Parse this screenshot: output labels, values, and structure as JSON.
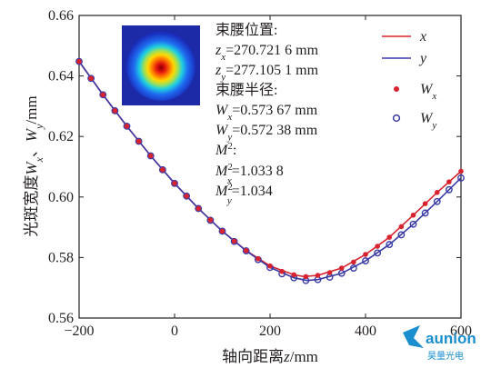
{
  "chart_data": {
    "type": "scatter",
    "xlabel": "轴向距离z/mm",
    "ylabel": "光斑宽度W_x、W_y/mm",
    "xlim": [
      -200,
      600
    ],
    "ylim": [
      0.56,
      0.66
    ],
    "xticks": [
      "−200",
      "0",
      "200",
      "400",
      "600"
    ],
    "yticks": [
      "0.56",
      "0.58",
      "0.60",
      "0.62",
      "0.64",
      "0.66"
    ],
    "grid": false,
    "legend_position": "top-right",
    "legend": [
      {
        "label": "x",
        "style": "line",
        "color": "#d7232f"
      },
      {
        "label": "y",
        "style": "line",
        "color": "#3a3aa6"
      },
      {
        "label": "W_x",
        "style": "filled-dot",
        "color": "#d7232f"
      },
      {
        "label": "W_y",
        "style": "open-circle",
        "color": "#3a3aa6"
      }
    ],
    "series": [
      {
        "name": "x",
        "kind": "line",
        "color": "#d7232f",
        "x": [
          -200,
          -150,
          -100,
          -50,
          0,
          50,
          100,
          150,
          200,
          250,
          270.7,
          300,
          350,
          400,
          450,
          500,
          550,
          600
        ],
        "y": [
          0.6448,
          0.6338,
          0.6234,
          0.6136,
          0.6045,
          0.5962,
          0.5887,
          0.5823,
          0.5772,
          0.5743,
          0.5737,
          0.5741,
          0.5765,
          0.581,
          0.5867,
          0.594,
          0.6015,
          0.6085
        ]
      },
      {
        "name": "y",
        "kind": "line",
        "color": "#3a3aa6",
        "x": [
          -200,
          -150,
          -100,
          -50,
          0,
          50,
          100,
          150,
          200,
          250,
          277.1,
          300,
          350,
          400,
          450,
          500,
          550,
          600
        ],
        "y": [
          0.6448,
          0.6338,
          0.6234,
          0.6136,
          0.6045,
          0.5962,
          0.5887,
          0.5822,
          0.5767,
          0.5733,
          0.5724,
          0.5727,
          0.5748,
          0.5789,
          0.5843,
          0.591,
          0.5985,
          0.6063
        ]
      },
      {
        "name": "W_x",
        "kind": "points",
        "color": "#d7232f",
        "x": [
          -200,
          -175,
          -150,
          -125,
          -100,
          -75,
          -50,
          -25,
          0,
          25,
          50,
          75,
          100,
          125,
          150,
          175,
          200,
          225,
          250,
          275,
          300,
          325,
          350,
          375,
          400,
          425,
          450,
          475,
          500,
          525,
          550,
          575,
          600
        ],
        "y": [
          0.6448,
          0.6392,
          0.6338,
          0.6285,
          0.6234,
          0.6184,
          0.6136,
          0.609,
          0.6045,
          0.6003,
          0.5962,
          0.5924,
          0.5887,
          0.5854,
          0.5823,
          0.5796,
          0.5772,
          0.5754,
          0.5743,
          0.5737,
          0.5741,
          0.575,
          0.5765,
          0.5785,
          0.581,
          0.5837,
          0.5867,
          0.5902,
          0.594,
          0.5978,
          0.6015,
          0.605,
          0.6085
        ]
      },
      {
        "name": "W_y",
        "kind": "points",
        "color": "#3a3aa6",
        "x": [
          -200,
          -175,
          -150,
          -125,
          -100,
          -75,
          -50,
          -25,
          0,
          25,
          50,
          75,
          100,
          125,
          150,
          175,
          200,
          225,
          250,
          275,
          300,
          325,
          350,
          375,
          400,
          425,
          450,
          475,
          500,
          525,
          550,
          575,
          600
        ],
        "y": [
          0.6448,
          0.6392,
          0.6338,
          0.6285,
          0.6234,
          0.6184,
          0.6136,
          0.609,
          0.6045,
          0.6003,
          0.5962,
          0.5923,
          0.5887,
          0.5853,
          0.5822,
          0.5793,
          0.5767,
          0.5746,
          0.5733,
          0.5724,
          0.5727,
          0.5735,
          0.5748,
          0.5765,
          0.5789,
          0.5815,
          0.5843,
          0.5875,
          0.591,
          0.5947,
          0.5985,
          0.6024,
          0.6063
        ]
      }
    ],
    "annotations": [
      {
        "id": "waist_pos_title",
        "text": "束腰位置:"
      },
      {
        "id": "zx",
        "sym": "z",
        "sub": "x",
        "text": "=270.721 6 mm"
      },
      {
        "id": "zy",
        "sym": "z",
        "sub": "y",
        "text": "=277.105 1 mm"
      },
      {
        "id": "waist_radius_title",
        "text": "束腰半径:"
      },
      {
        "id": "wx",
        "sym": "W",
        "sub": "x",
        "text": "=0.573 67 mm"
      },
      {
        "id": "wy",
        "sym": "W",
        "sub": "y",
        "text": "=0.572 38 mm"
      },
      {
        "id": "m2_title",
        "sym": "M",
        "sup": "2",
        "text": ":"
      },
      {
        "id": "mx",
        "sym": "M",
        "sup": "2",
        "sub": "x",
        "text": "=1.033 8"
      },
      {
        "id": "my",
        "sym": "M",
        "sup": "2",
        "sub": "y",
        "text": "=1.034"
      }
    ],
    "inset": {
      "type": "beam-profile-heatmap",
      "colormap": "jet"
    }
  },
  "watermark": {
    "text": "aunion",
    "subtext": "昊量光电",
    "color": "#1a8ecf"
  }
}
